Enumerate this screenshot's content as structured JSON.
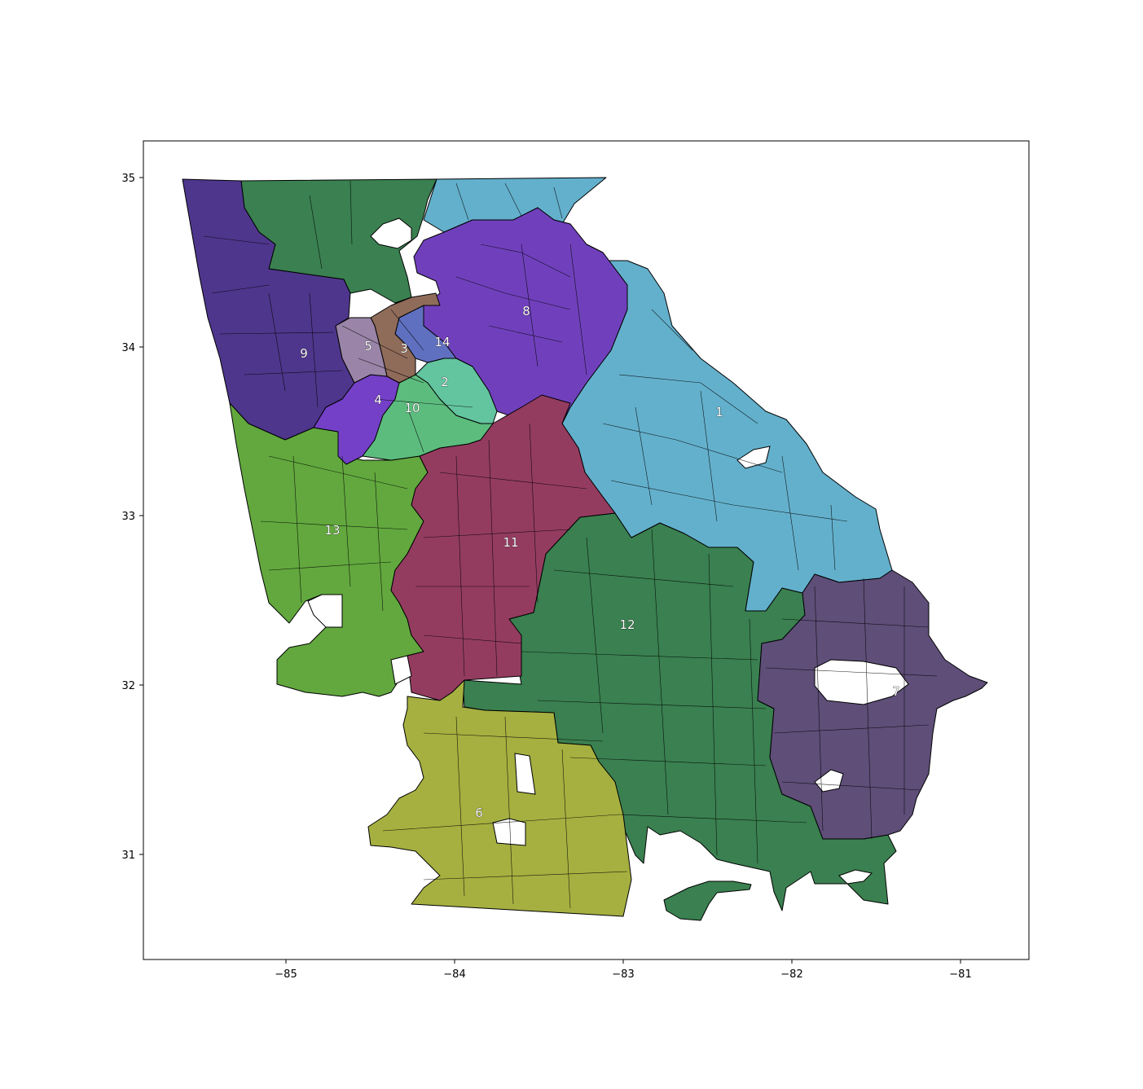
{
  "map": {
    "x_ticks": [
      "−85",
      "−84",
      "−83",
      "−82",
      "−81"
    ],
    "y_ticks": [
      "35",
      "34",
      "33",
      "32",
      "31"
    ],
    "districts": [
      {
        "label": "1",
        "color": "#63b0cc"
      },
      {
        "label": "2",
        "color": "#63c4a0"
      },
      {
        "label": "3",
        "color": "#8f6b5a"
      },
      {
        "label": "4",
        "color": "#7440c8"
      },
      {
        "label": "5",
        "color": "#9a85a8"
      },
      {
        "label": "6",
        "color": "#a5b040"
      },
      {
        "label": "7",
        "color": "#5e4e78"
      },
      {
        "label": "8",
        "color": "#7040bc"
      },
      {
        "label": "9",
        "color": "#4e368c"
      },
      {
        "label": "10",
        "color": "#5cbc7e"
      },
      {
        "label": "11",
        "color": "#943c60"
      },
      {
        "label": "12",
        "color": "#3a8050"
      },
      {
        "label": "13",
        "color": "#62a83e"
      },
      {
        "label": "14",
        "color": "#6070c0"
      }
    ]
  }
}
